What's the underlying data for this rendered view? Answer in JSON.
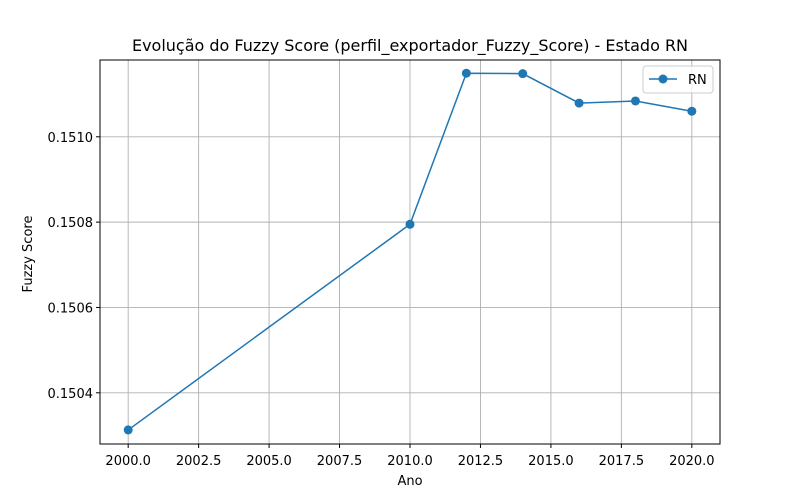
{
  "chart_data": {
    "type": "line",
    "title": "Evolução do Fuzzy Score (perfil_exportador_Fuzzy_Score) - Estado RN",
    "xlabel": "Ano",
    "ylabel": "Fuzzy Score",
    "xlim": [
      1999.0,
      2021.0
    ],
    "ylim": [
      0.15028,
      0.15118
    ],
    "x_ticks": [
      2000.0,
      2002.5,
      2005.0,
      2007.5,
      2010.0,
      2012.5,
      2015.0,
      2017.5,
      2020.0
    ],
    "x_tick_labels": [
      "2000.0",
      "2002.5",
      "2005.0",
      "2007.5",
      "2010.0",
      "2012.5",
      "2015.0",
      "2017.5",
      "2020.0"
    ],
    "y_ticks": [
      0.1504,
      0.1506,
      0.1508,
      0.151
    ],
    "y_tick_labels": [
      "0.1504",
      "0.1506",
      "0.1508",
      "0.1510"
    ],
    "grid": true,
    "legend_position": "top-right",
    "series": [
      {
        "name": "RN",
        "color": "#1f77b4",
        "marker": "circle",
        "x": [
          2000,
          2010,
          2012,
          2014,
          2016,
          2018,
          2020
        ],
        "y": [
          0.150313,
          0.150795,
          0.151149,
          0.151148,
          0.151079,
          0.151084,
          0.15106
        ]
      }
    ]
  }
}
